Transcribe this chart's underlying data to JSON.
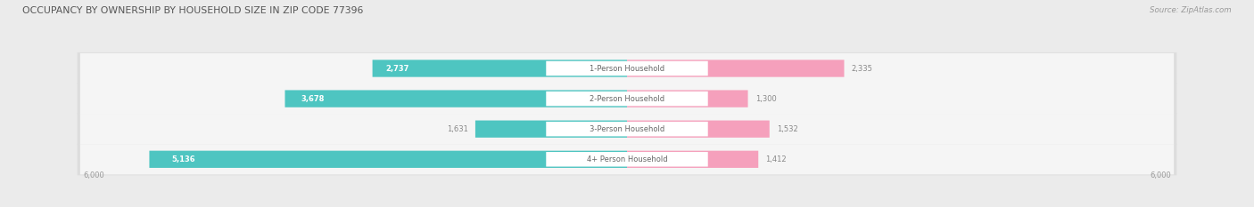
{
  "title": "OCCUPANCY BY OWNERSHIP BY HOUSEHOLD SIZE IN ZIP CODE 77396",
  "source": "Source: ZipAtlas.com",
  "categories": [
    "1-Person Household",
    "2-Person Household",
    "3-Person Household",
    "4+ Person Household"
  ],
  "owner_values": [
    2737,
    3678,
    1631,
    5136
  ],
  "renter_values": [
    2335,
    1300,
    1532,
    1412
  ],
  "x_max": 6000,
  "owner_color": "#4EC5C1",
  "renter_color": "#F5A0BC",
  "bg_color": "#EBEBEB",
  "row_bg_color": "#F5F5F5",
  "row_shadow_color": "#DDDDDD",
  "title_color": "#555555",
  "source_color": "#999999",
  "cat_label_color": "#666666",
  "axis_tick_color": "#999999",
  "value_on_bar_color": "#FFFFFF",
  "value_off_bar_color": "#888888",
  "pill_color": "#FFFFFF"
}
